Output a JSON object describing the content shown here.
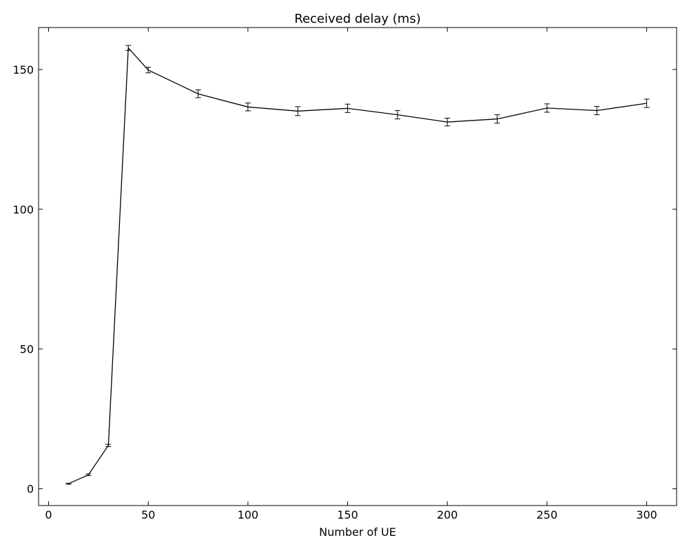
{
  "chart_data": {
    "type": "line",
    "title": "Received delay (ms)",
    "xlabel": "Number of UE",
    "ylabel": "",
    "xlim": [
      -5,
      315
    ],
    "ylim": [
      -6,
      165
    ],
    "xticks": [
      0,
      50,
      100,
      150,
      200,
      250,
      300
    ],
    "yticks": [
      0,
      50,
      100,
      150
    ],
    "grid": false,
    "legend": "none",
    "line_color": "#000000",
    "series": [
      {
        "x": [
          10,
          20,
          30,
          40,
          50,
          75,
          100,
          125,
          150,
          175,
          200,
          225,
          250,
          275,
          300
        ],
        "y": [
          1.8,
          5.0,
          15.5,
          157.7,
          149.8,
          141.3,
          136.6,
          135.1,
          136.1,
          133.8,
          131.2,
          132.3,
          136.2,
          135.3,
          137.9
        ],
        "yerr": [
          0.2,
          0.3,
          0.4,
          0.9,
          1.0,
          1.4,
          1.4,
          1.6,
          1.5,
          1.5,
          1.4,
          1.5,
          1.5,
          1.5,
          1.5
        ]
      }
    ]
  }
}
